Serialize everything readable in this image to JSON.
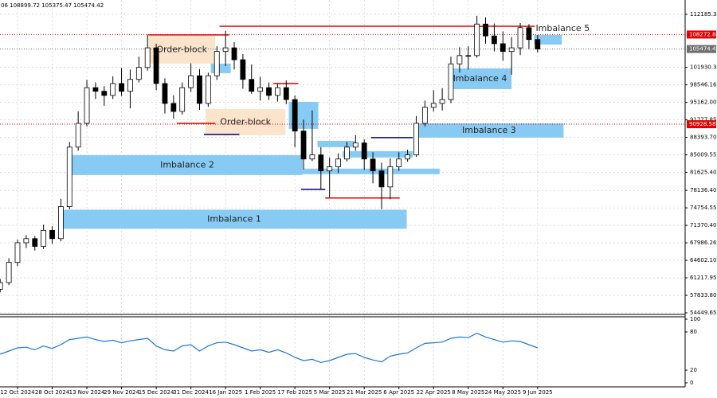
{
  "chart_data": [
    {
      "type": "candlestick",
      "header": "06 108899.72 105375.47 105474.42",
      "categories": [
        null,
        null,
        "12 Oct 2024",
        null,
        null,
        null,
        "28 Oct 2024",
        null,
        null,
        null,
        "13 Nov 2024",
        null,
        null,
        null,
        "29 Nov 2024",
        null,
        null,
        null,
        "15 Dec 2024",
        null,
        null,
        null,
        "31 Dec 2024",
        null,
        null,
        null,
        "16 Jan 2025",
        null,
        null,
        null,
        "1 Feb 2025",
        null,
        null,
        null,
        "17 Feb 2025",
        null,
        null,
        null,
        "5 Mar 2025",
        null,
        null,
        null,
        "21 Mar 2025",
        null,
        null,
        null,
        "6 Apr 2025",
        null,
        null,
        null,
        "22 Apr 2025",
        null,
        null,
        null,
        "8 May 2025",
        null,
        null,
        null,
        "24 May 2025",
        null,
        null,
        null,
        "9 Jun 2025"
      ],
      "open": [
        59000,
        60300,
        64200,
        68000,
        68800,
        67300,
        70400,
        68800,
        75000,
        86500,
        91100,
        98000,
        97300,
        96500,
        98800,
        97300,
        99600,
        101900,
        105700,
        98800,
        94950,
        93400,
        98000,
        100300,
        94950,
        100300,
        105000,
        105700,
        103400,
        99600,
        97300,
        98000,
        96500,
        98000,
        95700,
        89600,
        84200,
        85000,
        81900,
        82700,
        84200,
        86500,
        87300,
        84200,
        81900,
        78800,
        82700,
        84200,
        85000,
        91100,
        94200,
        94950,
        95700,
        102600,
        104200,
        104200,
        110300,
        108000,
        106500,
        105000,
        105700,
        109600,
        107300
      ],
      "high": [
        61000,
        65000,
        68600,
        69500,
        69300,
        71500,
        71200,
        76500,
        87500,
        93400,
        99500,
        99000,
        98300,
        100200,
        101800,
        101500,
        104000,
        108300,
        106500,
        99800,
        96500,
        99000,
        102700,
        101600,
        100900,
        106000,
        109000,
        106800,
        104500,
        102500,
        100100,
        99000,
        98700,
        99400,
        96500,
        91800,
        93600,
        86500,
        84500,
        85300,
        87500,
        88800,
        88000,
        85500,
        83500,
        84300,
        85500,
        86000,
        92500,
        95500,
        97500,
        97900,
        104000,
        105800,
        106000,
        111900,
        111600,
        110400,
        108900,
        107800,
        110500,
        110300,
        108200
      ],
      "low": [
        58400,
        59800,
        63500,
        67000,
        66500,
        66800,
        67800,
        68300,
        74500,
        85800,
        90500,
        95800,
        94500,
        95800,
        96400,
        94000,
        99000,
        101300,
        97500,
        93000,
        92000,
        92800,
        97200,
        93700,
        94300,
        99500,
        102200,
        101500,
        97800,
        96800,
        95500,
        95600,
        95300,
        94800,
        86500,
        82200,
        83800,
        78300,
        76800,
        81500,
        83700,
        85800,
        82100,
        79500,
        74500,
        76400,
        81900,
        83700,
        84600,
        90500,
        93400,
        93600,
        95000,
        100900,
        101500,
        103800,
        106500,
        105000,
        103200,
        100500,
        104300,
        105500,
        104800
      ],
      "close": [
        60300,
        64200,
        68000,
        68800,
        67300,
        70400,
        68800,
        75000,
        86500,
        91100,
        98000,
        97300,
        96500,
        98800,
        97300,
        99600,
        101900,
        105700,
        98800,
        94950,
        93400,
        98000,
        100300,
        94950,
        100300,
        105000,
        105700,
        103400,
        99600,
        97300,
        98000,
        96500,
        98000,
        95700,
        89600,
        84200,
        85000,
        81900,
        82700,
        84200,
        86500,
        87300,
        84200,
        81900,
        78800,
        82700,
        84200,
        85000,
        91100,
        94200,
        94950,
        95700,
        102600,
        104200,
        104200,
        110300,
        108000,
        106500,
        105000,
        105700,
        109600,
        107300,
        105474.42
      ],
      "up_color": "#ffffff",
      "down_color": "#000000",
      "ylim": [
        54142,
        114954
      ],
      "yticks": [
        112185.34,
        {
          "value": 101930.3,
          "label": "101930.30"
        },
        98546.16,
        {
          "value": 95162,
          "label": "95162.00"
        },
        91777.85,
        {
          "value": 88393.7,
          "label": "88393.70"
        },
        85009.55,
        {
          "value": 81625.4,
          "label": "81625.40"
        },
        {
          "value": 78136.4,
          "label": "78136.40"
        },
        74754.55,
        {
          "value": 71370.4,
          "label": "71370.40"
        },
        67986.26,
        {
          "value": 64602.1,
          "label": "64602.10"
        },
        61217.95,
        {
          "value": 57833.8,
          "label": "57833.80"
        },
        54449.65
      ],
      "grid": true,
      "zones": [
        {
          "label": "Imbalance 1",
          "x": [
            7.1,
            46.9
          ],
          "y": [
            70700,
            74400
          ],
          "color": "#87cbf5"
        },
        {
          "label": "Imbalance 2",
          "x": [
            8.25,
            34.9
          ],
          "y": [
            81100,
            84950
          ],
          "color": "#87cbf5"
        },
        {
          "x": [
            34.9,
            50.7
          ],
          "y": [
            81261,
            82339
          ],
          "color": "#87cbf5"
        },
        {
          "label": "Imbalance 3",
          "x": [
            47.8,
            65
          ],
          "y": [
            88340,
            91100
          ],
          "color": "#87cbf5"
        },
        {
          "label": "Imbalance 4",
          "x": [
            51.7,
            59
          ],
          "y": [
            97720,
            101720
          ],
          "color": "#87cbf5"
        },
        {
          "label": "Imbalance 5",
          "x": [
            61.6,
            64.8
          ],
          "y": [
            106340,
            108190
          ],
          "color": "#87cbf5"
        },
        {
          "label": "Order-block",
          "x": [
            17.1,
            24.8
          ],
          "y": [
            102650,
            108030
          ],
          "color": "#fbe4cc"
        },
        {
          "label": "Order-block",
          "x": [
            23.7,
            32.9
          ],
          "y": [
            88800,
            93880
          ],
          "color": "#fbe4cc"
        },
        {
          "x": [
            24.3,
            26.6
          ],
          "y": [
            100800,
            102650
          ],
          "color": "#87cbf5"
        },
        {
          "x": [
            33.3,
            36.7
          ],
          "y": [
            90030,
            95260
          ],
          "color": "#87cbf5"
        },
        {
          "x": [
            36.6,
            40.9
          ],
          "y": [
            86490,
            87720
          ],
          "color": "#87cbf5"
        },
        {
          "x": [
            39.5,
            47.6
          ],
          "y": [
            84490,
            85720
          ],
          "color": "#87cbf5"
        }
      ],
      "levels": [
        {
          "value": 109877,
          "x": [
            25.3,
            61.7
          ],
          "color": "#e00000"
        },
        {
          "value": 108190,
          "x": [
            17.1,
            26.4
          ],
          "color": "#e00000"
        },
        {
          "value": 98800,
          "x": [
            31.5,
            34.4
          ],
          "color": "#e00000"
        },
        {
          "value": 91100,
          "x": [
            20.4,
            24.8
          ],
          "color": "#e00000"
        },
        {
          "value": 76650,
          "x": [
            37.5,
            46.1
          ],
          "color": "#e00000"
        },
        {
          "value": 88950,
          "x": [
            23.5,
            27.6
          ],
          "color": "#00008b"
        },
        {
          "value": 88340,
          "x": [
            42.8,
            47.6
          ],
          "color": "#00008b"
        },
        {
          "value": 78340,
          "x": [
            34.7,
            37.5
          ],
          "color": "#00008b"
        }
      ],
      "price_labels": [
        {
          "value": 108272.88,
          "color": "#e00000"
        },
        {
          "value": 105474.42,
          "color": "#6e6e6e"
        },
        {
          "value": 90928.58,
          "color": "#e00000"
        }
      ]
    },
    {
      "type": "line",
      "color": "#1e78dc",
      "values": [
        45,
        50,
        55,
        56,
        52,
        58,
        54,
        60,
        68,
        70,
        72,
        68,
        65,
        67,
        63,
        66,
        68,
        70,
        58,
        52,
        50,
        58,
        60,
        50,
        58,
        63,
        64,
        60,
        55,
        50,
        52,
        48,
        52,
        47,
        40,
        35,
        37,
        32,
        35,
        40,
        45,
        46,
        40,
        36,
        33,
        42,
        45,
        47,
        55,
        62,
        63,
        64,
        70,
        72,
        71,
        78,
        72,
        68,
        64,
        66,
        65,
        60,
        55
      ],
      "ylim": [
        0,
        100
      ],
      "yticks": [
        0,
        20,
        80,
        100
      ]
    }
  ]
}
